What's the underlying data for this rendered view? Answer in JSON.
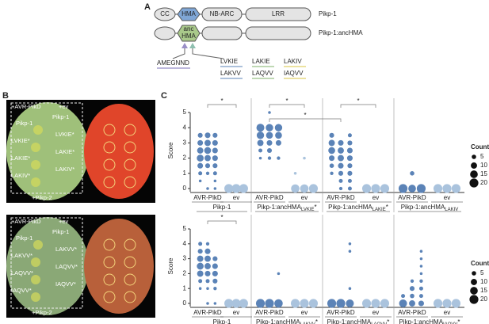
{
  "panel_a": {
    "label": "A",
    "domains": [
      "CC",
      "HMA",
      "NB-ARC",
      "LRR"
    ],
    "proteins": [
      "Pikp-1",
      "Pikp-1:ancHMA"
    ],
    "anc_domain": [
      "anc",
      "HMA"
    ],
    "motifs": [
      "AMEGNND"
    ],
    "mutants": [
      [
        "LVKIE",
        "LAKVV"
      ],
      [
        "LAKIE",
        "LAQVV"
      ],
      [
        "LAKIV",
        "IAQVV"
      ]
    ]
  },
  "panel_b": {
    "label": "B",
    "photos": [
      {
        "top_left": "+AVR-PikD",
        "top_right": "+ev",
        "bottom": "+Pikp-2",
        "left": [
          "Pikp-1",
          "LVKIE*",
          "LAKIE*",
          "LAKIV*"
        ],
        "right": [
          "Pikp-1",
          "LVKIE*",
          "LAKIE*",
          "LAKIV*"
        ]
      },
      {
        "top_left": "+AVR-PikD",
        "top_right": "+ev",
        "bottom": "+Pikp-2",
        "left": [
          "Pikp-1",
          "LAKVV*",
          "LAQVV*",
          "IAQVV*"
        ],
        "right": [
          "Pikp-1",
          "LAKVV*",
          "LAQVV*",
          "IAQVV*"
        ]
      }
    ]
  },
  "panel_c": {
    "label": "C",
    "y_label": "Score",
    "ylim": [
      0,
      5
    ],
    "yticks": [
      0,
      1,
      2,
      3,
      4,
      5
    ],
    "size_legend": {
      "title": "Count",
      "values": [
        5,
        10,
        15,
        20
      ]
    },
    "conditions": [
      {
        "name": "AVR-PikD",
        "color": "#5b83b7"
      },
      {
        "name": "ev",
        "color": "#aac3dd"
      }
    ],
    "plots": [
      {
        "significance": [
          "*",
          "*",
          "*",
          "*"
        ],
        "groups": [
          {
            "name": "Pikp-1",
            "columns": [
              [
                [
                  3.5,
                  6
                ],
                [
                  3,
                  8
                ],
                [
                  2.5,
                  10
                ],
                [
                  2,
                  12
                ],
                [
                  1.5,
                  8
                ],
                [
                  1,
                  4
                ],
                [
                  0.5,
                  2
                ]
              ],
              [
                [
                  3.5,
                  8
                ],
                [
                  3,
                  10
                ],
                [
                  2.5,
                  12
                ],
                [
                  2,
                  10
                ],
                [
                  1.5,
                  6
                ],
                [
                  1,
                  3
                ],
                [
                  0,
                  2
                ]
              ],
              [
                [
                  3.5,
                  6
                ],
                [
                  3,
                  8
                ],
                [
                  2.5,
                  8
                ],
                [
                  2,
                  8
                ],
                [
                  1.5,
                  6
                ],
                [
                  1,
                  4
                ],
                [
                  0.5,
                  2
                ],
                [
                  0,
                  2
                ]
              ],
              [
                [
                  0,
                  20
                ]
              ],
              [
                [
                  0,
                  20
                ]
              ],
              [
                [
                  0,
                  20
                ]
              ]
            ]
          },
          {
            "name": "Pikp-1:ancHMA",
            "sub": "LVKIE",
            "suffix": "*",
            "columns": [
              [
                [
                  4,
                  16
                ],
                [
                  3.5,
                  14
                ],
                [
                  3,
                  10
                ],
                [
                  2.5,
                  4
                ],
                [
                  2,
                  2
                ]
              ],
              [
                [
                  5,
                  2
                ],
                [
                  4,
                  14
                ],
                [
                  3.5,
                  12
                ],
                [
                  3,
                  8
                ],
                [
                  2.5,
                  6
                ],
                [
                  2,
                  3
                ]
              ],
              [
                [
                  4,
                  14
                ],
                [
                  3.5,
                  12
                ],
                [
                  3,
                  8
                ],
                [
                  2,
                  3
                ]
              ],
              [
                [
                  1,
                  2
                ],
                [
                  0,
                  18
                ]
              ],
              [
                [
                  2,
                  2
                ],
                [
                  0,
                  18
                ]
              ],
              [
                [
                  0,
                  20
                ]
              ]
            ]
          },
          {
            "name": "Pikp-1:ancHMA",
            "sub": "LAKIE",
            "suffix": "*",
            "columns": [
              [
                [
                  3.5,
                  6
                ],
                [
                  3,
                  10
                ],
                [
                  2.5,
                  12
                ],
                [
                  2,
                  8
                ],
                [
                  1.5,
                  5
                ],
                [
                  1,
                  3
                ]
              ],
              [
                [
                  3,
                  8
                ],
                [
                  2.5,
                  10
                ],
                [
                  2,
                  10
                ],
                [
                  1.5,
                  8
                ],
                [
                  1,
                  6
                ],
                [
                  0.5,
                  4
                ],
                [
                  0,
                  3
                ]
              ],
              [
                [
                  3.5,
                  4
                ],
                [
                  3,
                  6
                ],
                [
                  2.5,
                  8
                ],
                [
                  2,
                  8
                ],
                [
                  1.5,
                  6
                ],
                [
                  1,
                  6
                ],
                [
                  0.5,
                  4
                ],
                [
                  0,
                  4
                ]
              ],
              [
                [
                  0,
                  20
                ]
              ],
              [
                [
                  0,
                  20
                ]
              ],
              [
                [
                  0,
                  20
                ]
              ]
            ]
          },
          {
            "name": "Pikp-1:ancHMA",
            "sub": "LAKIV",
            "columns": [
              [
                [
                  0,
                  20
                ]
              ],
              [
                [
                  1,
                  5
                ],
                [
                  0,
                  15
                ]
              ],
              [
                [
                  0,
                  20
                ]
              ],
              [
                [
                  0,
                  20
                ]
              ],
              [
                [
                  0,
                  20
                ]
              ],
              [
                [
                  0,
                  20
                ]
              ]
            ]
          }
        ]
      },
      {
        "significance": [
          "*"
        ],
        "groups": [
          {
            "name": "Pikp-1",
            "columns": [
              [
                [
                  4,
                  4
                ],
                [
                  3.5,
                  6
                ],
                [
                  3,
                  10
                ],
                [
                  2.5,
                  12
                ],
                [
                  2,
                  10
                ],
                [
                  1.5,
                  4
                ],
                [
                  1,
                  2
                ]
              ],
              [
                [
                  4,
                  3
                ],
                [
                  3.5,
                  8
                ],
                [
                  3,
                  10
                ],
                [
                  2.5,
                  10
                ],
                [
                  2,
                  8
                ],
                [
                  1.5,
                  4
                ],
                [
                  1,
                  2
                ],
                [
                  0,
                  2
                ]
              ],
              [
                [
                  3,
                  6
                ],
                [
                  2.5,
                  8
                ],
                [
                  2,
                  8
                ],
                [
                  1.5,
                  6
                ],
                [
                  1,
                  3
                ],
                [
                  0,
                  2
                ]
              ],
              [
                [
                  0,
                  20
                ]
              ],
              [
                [
                  0,
                  20
                ]
              ],
              [
                [
                  0,
                  20
                ]
              ]
            ]
          },
          {
            "name": "Pikp-1:ancHMA",
            "sub": "LAKVV",
            "suffix": "*",
            "columns": [
              [
                [
                  0,
                  20
                ]
              ],
              [
                [
                  0,
                  20
                ]
              ],
              [
                [
                  2,
                  2
                ],
                [
                  0,
                  18
                ]
              ],
              [
                [
                  0,
                  20
                ]
              ],
              [
                [
                  0,
                  20
                ]
              ],
              [
                [
                  0,
                  20
                ]
              ]
            ]
          },
          {
            "name": "Pikp-1:ancHMA",
            "sub": "LAQVV",
            "suffix": "*",
            "columns": [
              [
                [
                  0,
                  20
                ]
              ],
              [
                [
                  0,
                  20
                ]
              ],
              [
                [
                  4,
                  2
                ],
                [
                  3.5,
                  2
                ],
                [
                  1,
                  2
                ],
                [
                  0,
                  16
                ]
              ],
              [
                [
                  0,
                  20
                ]
              ],
              [
                [
                  0,
                  20
                ]
              ],
              [
                [
                  0,
                  20
                ]
              ]
            ]
          },
          {
            "name": "Pikp-1:ancHMA",
            "sub": "IAQVV",
            "suffix": "*",
            "columns": [
              [
                [
                  0,
                  16
                ],
                [
                  0.5,
                  4
                ]
              ],
              [
                [
                  1.5,
                  3
                ],
                [
                  1,
                  6
                ],
                [
                  0.5,
                  5
                ],
                [
                  0,
                  10
                ]
              ],
              [
                [
                  3.5,
                  2
                ],
                [
                  3,
                  2
                ],
                [
                  2.5,
                  2
                ],
                [
                  2,
                  2
                ],
                [
                  1.5,
                  3
                ],
                [
                  1,
                  4
                ],
                [
                  0.5,
                  4
                ],
                [
                  0,
                  8
                ]
              ],
              [
                [
                  0,
                  20
                ]
              ],
              [
                [
                  0,
                  20
                ]
              ],
              [
                [
                  0,
                  20
                ]
              ]
            ]
          }
        ]
      }
    ]
  }
}
